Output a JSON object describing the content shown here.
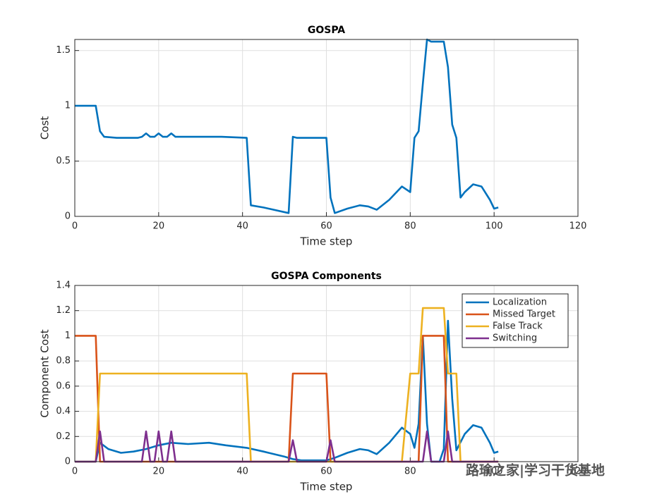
{
  "chart_data": [
    {
      "type": "line",
      "title": "GOSPA",
      "xlabel": "Time step",
      "ylabel": "Cost",
      "xlim": [
        0,
        120
      ],
      "xticks": [
        0,
        20,
        40,
        60,
        80,
        100,
        120
      ],
      "ylim": [
        0,
        1.6
      ],
      "yticks": [
        0,
        0.5,
        1,
        1.5
      ],
      "grid": true,
      "series": [
        {
          "name": null,
          "color": "#0072BD",
          "x": [
            0,
            5,
            6,
            7,
            10,
            15,
            16,
            17,
            18,
            19,
            20,
            21,
            22,
            23,
            24,
            30,
            35,
            41,
            42,
            45,
            51,
            52,
            53,
            60,
            61,
            62,
            65,
            68,
            70,
            72,
            75,
            78,
            80,
            81,
            82,
            83,
            84,
            85,
            88,
            89,
            90,
            91,
            92,
            93,
            95,
            97,
            99,
            100,
            101
          ],
          "values": [
            1.0,
            1.0,
            0.77,
            0.72,
            0.71,
            0.71,
            0.72,
            0.75,
            0.72,
            0.72,
            0.75,
            0.72,
            0.72,
            0.75,
            0.72,
            0.72,
            0.72,
            0.71,
            0.1,
            0.08,
            0.03,
            0.72,
            0.71,
            0.71,
            0.17,
            0.03,
            0.07,
            0.1,
            0.09,
            0.06,
            0.15,
            0.27,
            0.22,
            0.71,
            0.77,
            1.2,
            1.6,
            1.58,
            1.58,
            1.35,
            0.83,
            0.71,
            0.17,
            0.22,
            0.29,
            0.27,
            0.15,
            0.07,
            0.08
          ]
        }
      ]
    },
    {
      "type": "line",
      "title": "GOSPA Components",
      "xlabel": "Time step",
      "ylabel": "Component Cost",
      "xlim": [
        0,
        120
      ],
      "xticks": [
        0,
        20,
        40,
        60,
        80,
        100,
        120
      ],
      "ylim": [
        0,
        1.4
      ],
      "yticks": [
        0,
        0.2,
        0.4,
        0.6,
        0.8,
        1,
        1.2,
        1.4
      ],
      "grid": true,
      "legend": "northeast",
      "series": [
        {
          "name": "Localization",
          "color": "#0072BD",
          "x": [
            0,
            5,
            6,
            8,
            11,
            14,
            17,
            20,
            23,
            27,
            32,
            36,
            41,
            45,
            50,
            52,
            54,
            60,
            62,
            65,
            68,
            70,
            72,
            75,
            78,
            80,
            81,
            82,
            83,
            84,
            85,
            87,
            88,
            89,
            90,
            91,
            93,
            95,
            97,
            99,
            100,
            101
          ],
          "values": [
            0,
            0,
            0.15,
            0.1,
            0.07,
            0.08,
            0.1,
            0.13,
            0.15,
            0.14,
            0.15,
            0.13,
            0.11,
            0.08,
            0.04,
            0.02,
            0.01,
            0.01,
            0.03,
            0.07,
            0.1,
            0.09,
            0.06,
            0.15,
            0.27,
            0.22,
            0.11,
            0.3,
            1.0,
            0.3,
            0,
            0,
            0.1,
            1.12,
            0.5,
            0.09,
            0.22,
            0.29,
            0.27,
            0.15,
            0.07,
            0.08
          ]
        },
        {
          "name": "Missed Target",
          "color": "#D95319",
          "x": [
            0,
            5,
            6,
            51,
            52,
            60,
            61,
            82,
            83,
            88,
            89,
            101
          ],
          "values": [
            1,
            1,
            0,
            0,
            0.7,
            0.7,
            0,
            0,
            1,
            1,
            0,
            0
          ]
        },
        {
          "name": "False Track",
          "color": "#EDB120",
          "x": [
            0,
            5,
            6,
            41,
            42,
            78,
            80,
            82,
            83,
            88,
            89,
            91,
            92,
            101
          ],
          "values": [
            0,
            0,
            0.7,
            0.7,
            0,
            0,
            0.7,
            0.7,
            1.22,
            1.22,
            0.7,
            0.7,
            0,
            0
          ]
        },
        {
          "name": "Switching",
          "color": "#7E2F8E",
          "x": [
            0,
            5,
            6,
            7,
            16,
            17,
            18,
            19,
            20,
            21,
            22,
            23,
            24,
            51,
            52,
            53,
            60,
            61,
            62,
            83,
            84,
            85,
            88,
            89,
            90,
            101
          ],
          "values": [
            0,
            0,
            0.24,
            0,
            0,
            0.24,
            0,
            0,
            0.24,
            0,
            0,
            0.24,
            0,
            0,
            0.17,
            0,
            0,
            0.17,
            0,
            0,
            0.24,
            0,
            0,
            0.24,
            0,
            0
          ]
        }
      ]
    }
  ],
  "watermark": "路瑜之家|学习干货基地"
}
